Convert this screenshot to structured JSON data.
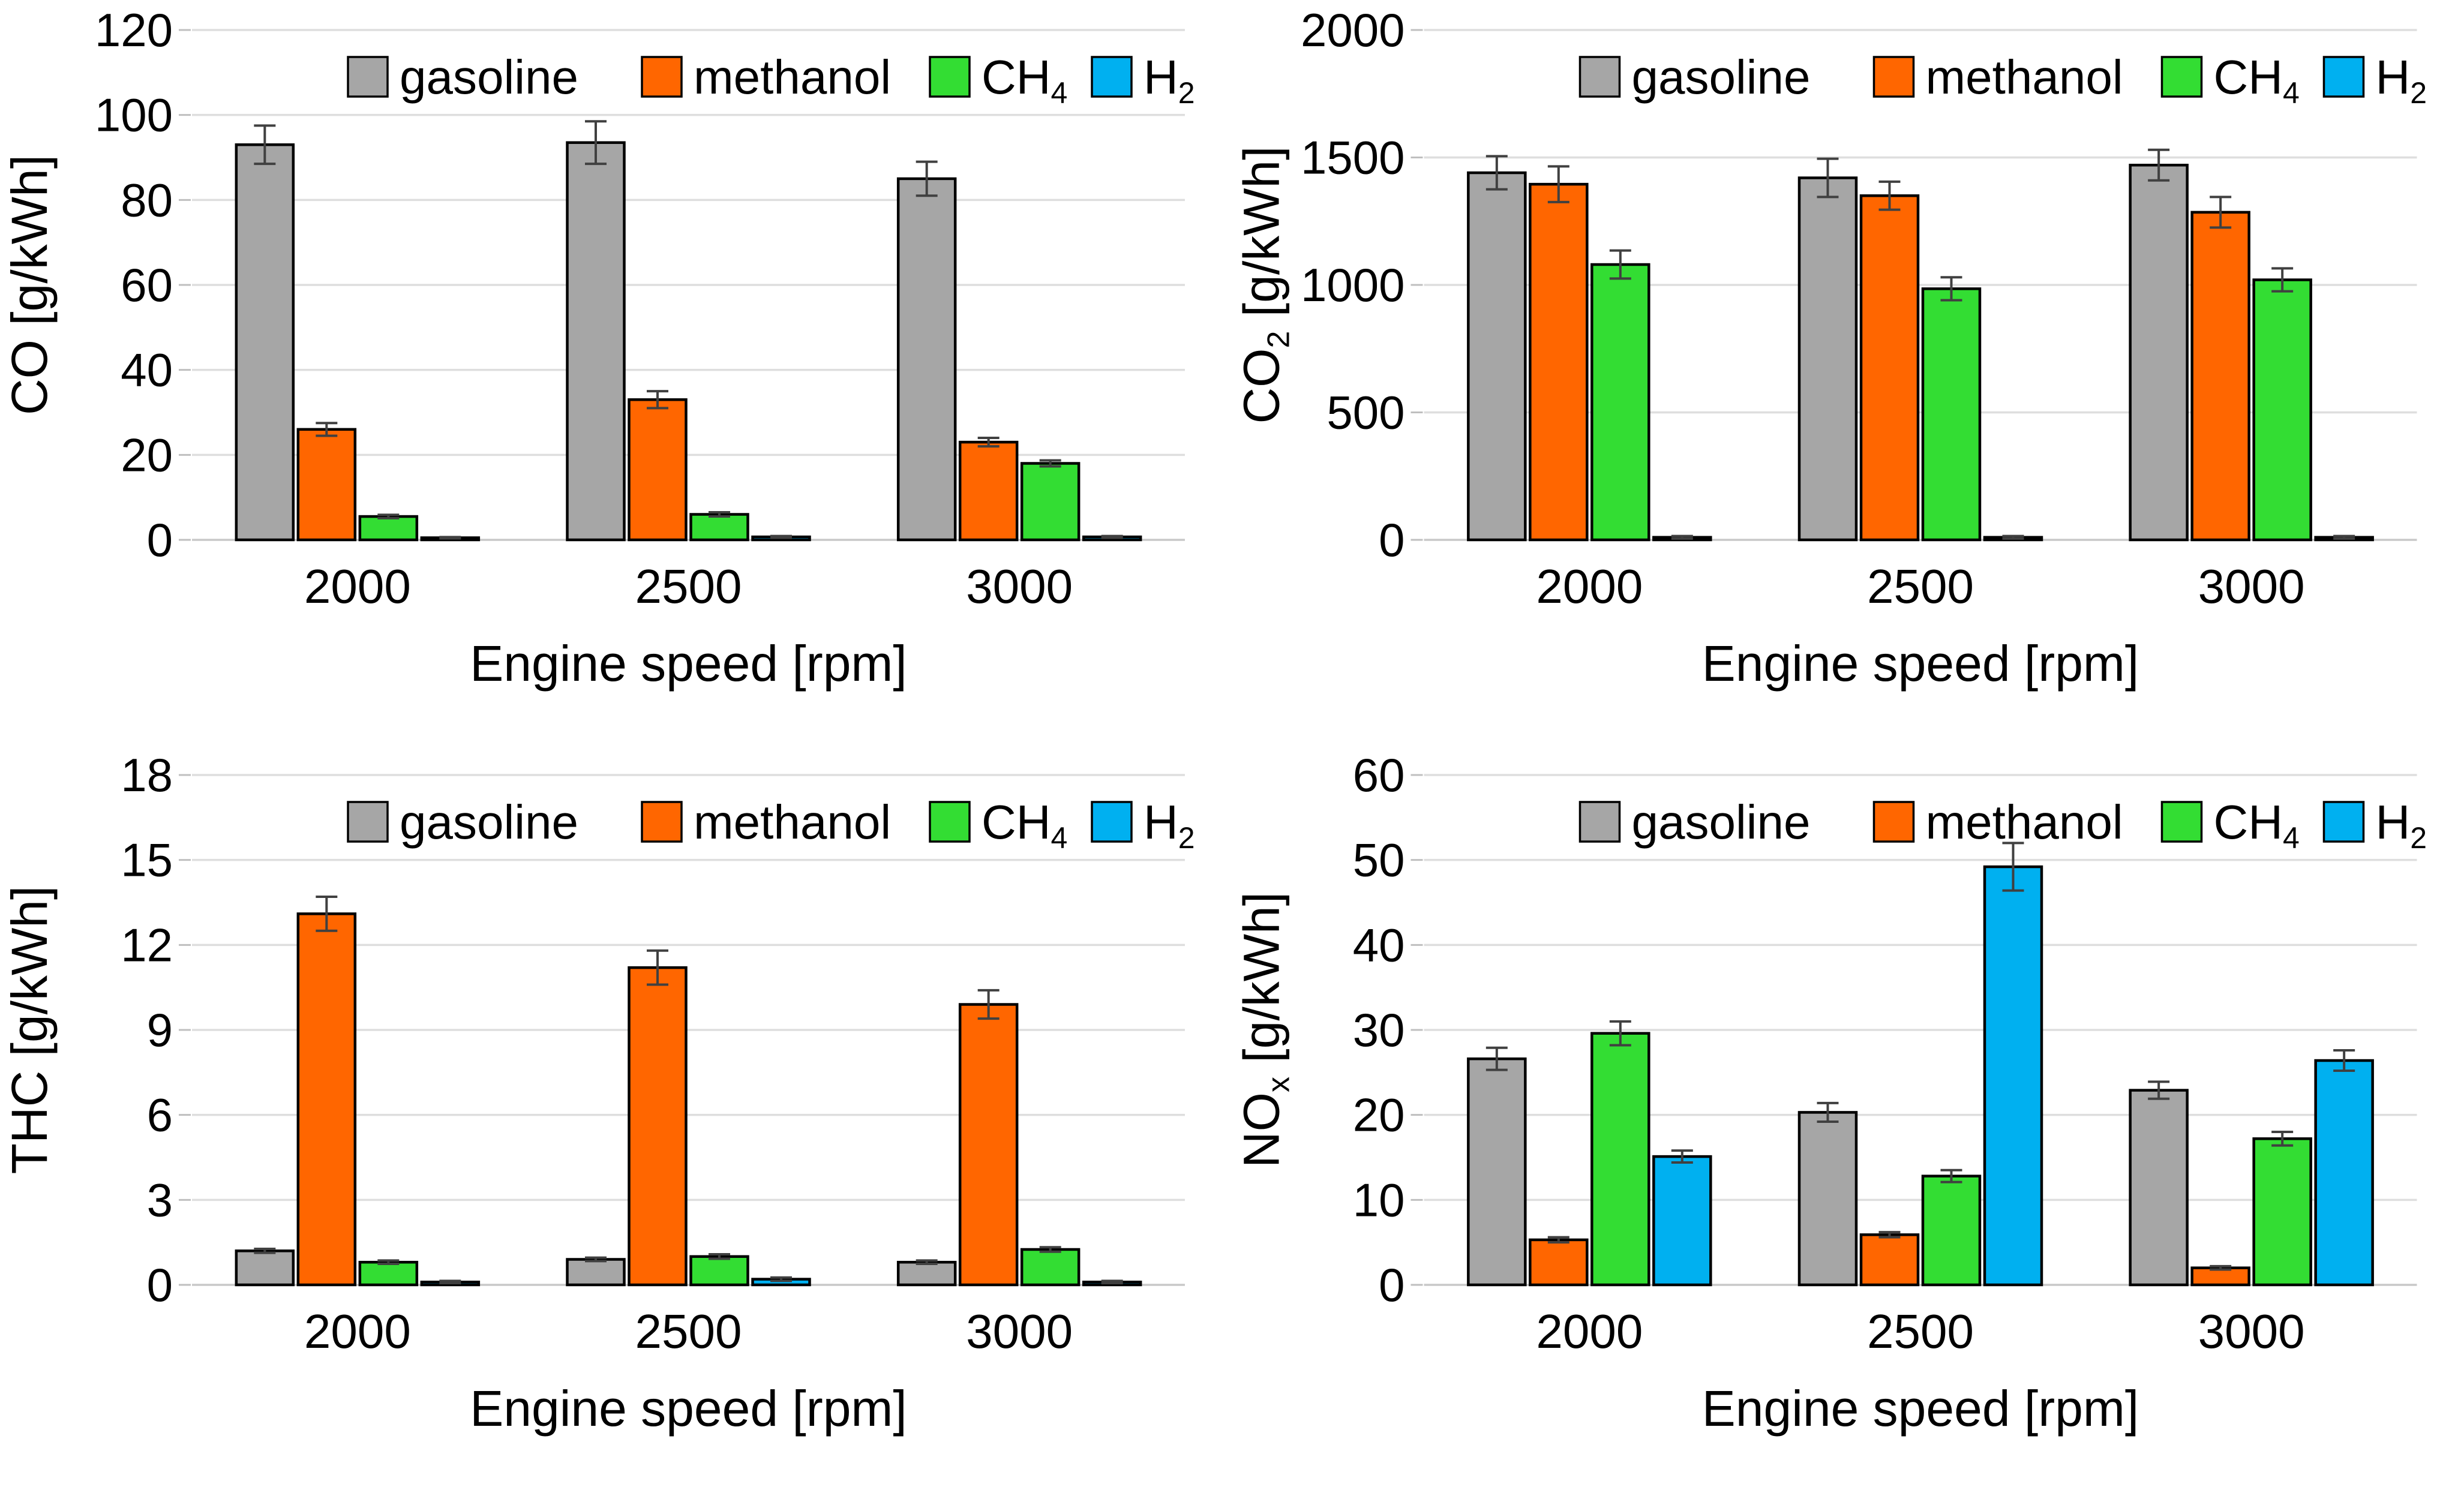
{
  "style": {
    "background": "#FFFFFF",
    "gridline_color": "#DEDEDE",
    "baseline_color": "#C8C8C8",
    "tick_color": "#BFBFBF",
    "bar_stroke": "#000000",
    "error_color": "#404040",
    "text_color": "#000000"
  },
  "x_axis_label": "Engine speed [rpm]",
  "categories": [
    "2000",
    "2500",
    "3000"
  ],
  "legend": [
    {
      "main": "gasoline",
      "sub": ""
    },
    {
      "main": "methanol",
      "sub": ""
    },
    {
      "main": "CH",
      "sub": "4"
    },
    {
      "main": "H",
      "sub": "2"
    }
  ],
  "chart_data": [
    {
      "type": "bar",
      "id": "co",
      "ylabel": {
        "main": "CO",
        "sub": "",
        "units": " [g/kWh]"
      },
      "xlabel": "Engine speed [rpm]",
      "ylim": [
        0,
        120
      ],
      "ystep": 20,
      "grid": true,
      "legend_position": "top-inside",
      "categories": [
        "2000",
        "2500",
        "3000"
      ],
      "series": [
        {
          "name": "gasoline",
          "color": "#A6A6A6",
          "values": [
            93,
            93.5,
            85
          ],
          "errors": [
            4.5,
            5,
            4
          ]
        },
        {
          "name": "methanol",
          "color": "#FF6600",
          "values": [
            26,
            33,
            23
          ],
          "errors": [
            1.5,
            2,
            1
          ]
        },
        {
          "name": "CH4",
          "color": "#33DD33",
          "values": [
            5.5,
            6,
            18
          ],
          "errors": [
            0.4,
            0.5,
            0.7
          ]
        },
        {
          "name": "H2",
          "color": "#00B0F0",
          "values": [
            0.5,
            0.7,
            0.7
          ],
          "errors": [
            0.15,
            0.2,
            0.2
          ]
        }
      ]
    },
    {
      "type": "bar",
      "id": "co2",
      "ylabel": {
        "main": "CO",
        "sub": "2",
        "units": " [g/kWh]"
      },
      "xlabel": "Engine speed [rpm]",
      "ylim": [
        0,
        2000
      ],
      "ystep": 500,
      "grid": true,
      "legend_position": "top-inside",
      "categories": [
        "2000",
        "2500",
        "3000"
      ],
      "series": [
        {
          "name": "gasoline",
          "color": "#A6A6A6",
          "values": [
            1440,
            1420,
            1470
          ],
          "errors": [
            65,
            75,
            60
          ]
        },
        {
          "name": "methanol",
          "color": "#FF6600",
          "values": [
            1395,
            1350,
            1285
          ],
          "errors": [
            70,
            55,
            60
          ]
        },
        {
          "name": "CH4",
          "color": "#33DD33",
          "values": [
            1080,
            985,
            1020
          ],
          "errors": [
            55,
            45,
            45
          ]
        },
        {
          "name": "H2",
          "color": "#00B0F0",
          "values": [
            10,
            10,
            10
          ],
          "errors": [
            5,
            5,
            5
          ]
        }
      ]
    },
    {
      "type": "bar",
      "id": "thc",
      "ylabel": {
        "main": "THC",
        "sub": "",
        "units": " [g/kWh]"
      },
      "xlabel": "Engine speed [rpm]",
      "ylim": [
        0,
        18
      ],
      "ystep": 3,
      "grid": true,
      "legend_position": "top-inside",
      "categories": [
        "2000",
        "2500",
        "3000"
      ],
      "series": [
        {
          "name": "gasoline",
          "color": "#A6A6A6",
          "values": [
            1.2,
            0.9,
            0.8
          ],
          "errors": [
            0.07,
            0.06,
            0.06
          ]
        },
        {
          "name": "methanol",
          "color": "#FF6600",
          "values": [
            13.1,
            11.2,
            9.9
          ],
          "errors": [
            0.6,
            0.6,
            0.5
          ]
        },
        {
          "name": "CH4",
          "color": "#33DD33",
          "values": [
            0.8,
            1.0,
            1.25
          ],
          "errors": [
            0.06,
            0.08,
            0.08
          ]
        },
        {
          "name": "H2",
          "color": "#00B0F0",
          "values": [
            0.1,
            0.2,
            0.1
          ],
          "errors": [
            0.04,
            0.06,
            0.04
          ]
        }
      ]
    },
    {
      "type": "bar",
      "id": "nox",
      "ylabel": {
        "main": "NO",
        "sub": "x",
        "units": " [g/kWh]"
      },
      "xlabel": "Engine speed [rpm]",
      "ylim": [
        0,
        60
      ],
      "ystep": 10,
      "grid": true,
      "legend_position": "top-inside",
      "categories": [
        "2000",
        "2500",
        "3000"
      ],
      "series": [
        {
          "name": "gasoline",
          "color": "#A6A6A6",
          "values": [
            26.6,
            20.3,
            22.9
          ],
          "errors": [
            1.3,
            1.1,
            1.0
          ]
        },
        {
          "name": "methanol",
          "color": "#FF6600",
          "values": [
            5.3,
            5.9,
            2.0
          ],
          "errors": [
            0.3,
            0.3,
            0.2
          ]
        },
        {
          "name": "CH4",
          "color": "#33DD33",
          "values": [
            29.6,
            12.8,
            17.2
          ],
          "errors": [
            1.4,
            0.7,
            0.8
          ]
        },
        {
          "name": "H2",
          "color": "#00B0F0",
          "values": [
            15.1,
            49.2,
            26.4
          ],
          "errors": [
            0.7,
            2.8,
            1.2
          ]
        }
      ]
    }
  ]
}
